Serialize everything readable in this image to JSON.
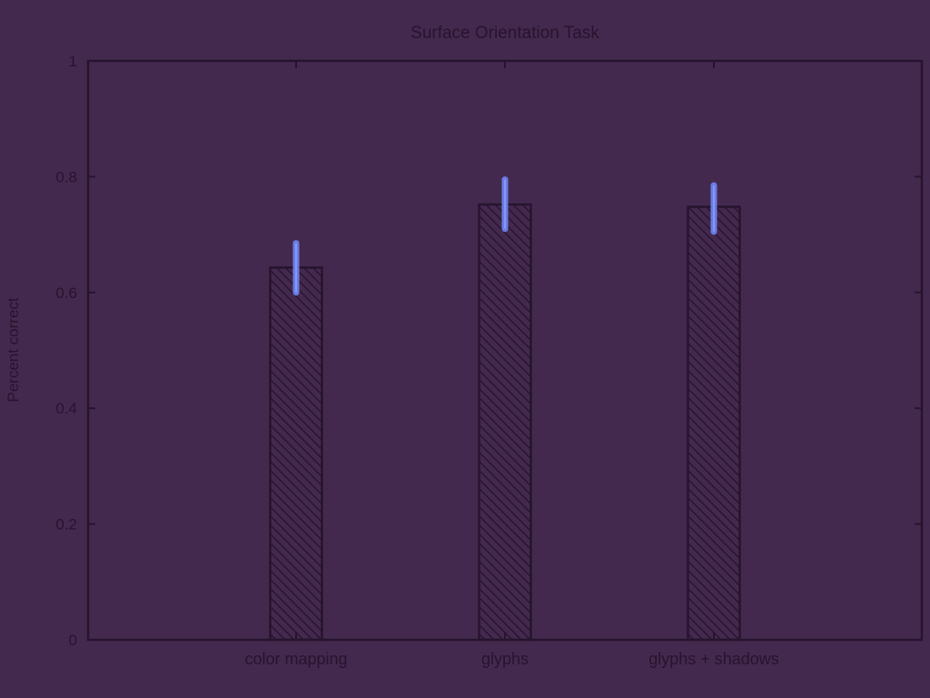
{
  "chart_data": {
    "type": "bar",
    "title": "Surface Orientation Task",
    "xlabel": "",
    "ylabel": "Percent correct",
    "ylim": [
      0,
      1
    ],
    "yticks": [
      "0",
      "0.2",
      "0.4",
      "0.6",
      "0.8",
      "1"
    ],
    "categories": [
      "color mapping",
      "glyphs",
      "glyphs + shadows"
    ],
    "values": [
      0.643,
      0.752,
      0.748
    ],
    "error_low": [
      0.6,
      0.71,
      0.705
    ],
    "error_high": [
      0.685,
      0.795,
      0.785
    ],
    "grid": false,
    "bar_pattern": "diagonal-hatch",
    "colors": {
      "background": "#44294f",
      "axis": "#26142e",
      "error_bar": "#6f86f2",
      "error_glow": "#4f5bd6"
    }
  }
}
